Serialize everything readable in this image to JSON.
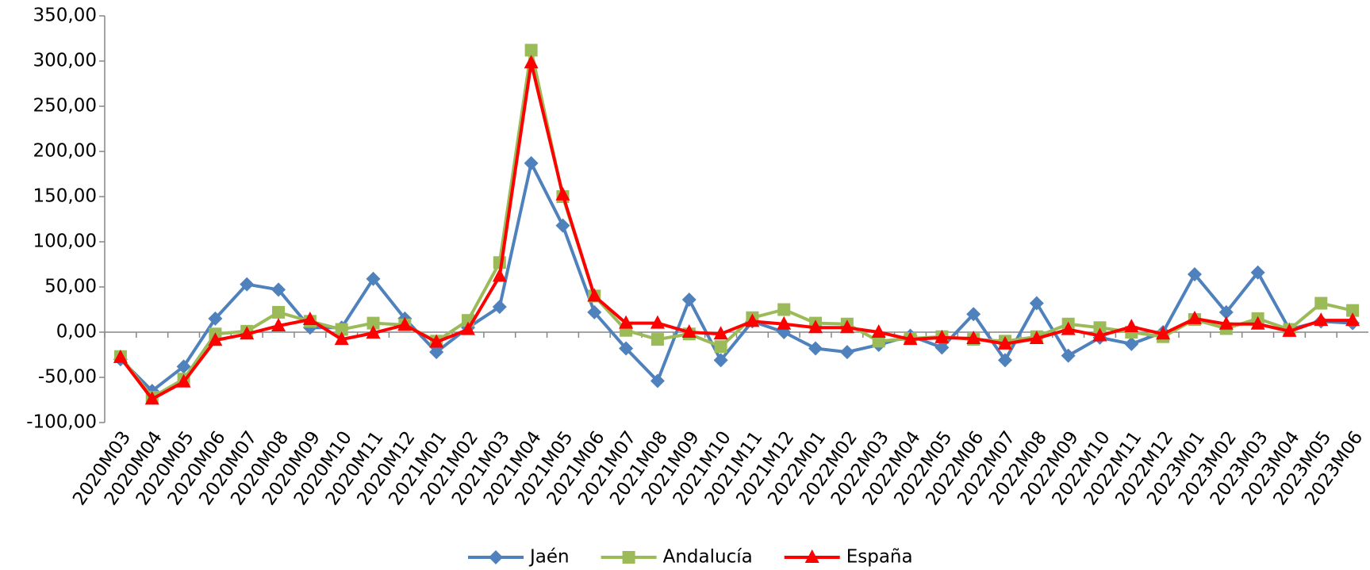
{
  "chart_data": {
    "type": "line",
    "categories": [
      "2020M03",
      "2020M04",
      "2020M05",
      "2020M06",
      "2020M07",
      "2020M08",
      "2020M09",
      "2020M10",
      "2020M11",
      "2020M12",
      "2021M01",
      "2021M02",
      "2021M03",
      "2021M04",
      "2021M05",
      "2021M06",
      "2021M07",
      "2021M08",
      "2021M09",
      "2021M10",
      "2021M11",
      "2021M12",
      "2022M01",
      "2022M02",
      "2022M03",
      "2022M04",
      "2022M05",
      "2022M06",
      "2022M07",
      "2022M08",
      "2022M09",
      "2022M10",
      "2022M11",
      "2022M12",
      "2023M01",
      "2023M02",
      "2023M03",
      "2023M04",
      "2023M05",
      "2023M06"
    ],
    "series": [
      {
        "name": "Jaén",
        "color": "#4f81bd",
        "marker": "diamond",
        "values": [
          -30,
          -65,
          -38,
          15,
          53,
          47,
          5,
          5,
          59,
          15,
          -22,
          5,
          28,
          187,
          118,
          22,
          -18,
          -54,
          36,
          -31,
          12,
          0,
          -18,
          -22,
          -14,
          -4,
          -17,
          20,
          -31,
          32,
          -26,
          -6,
          -13,
          0,
          64,
          22,
          66,
          3,
          12,
          10
        ]
      },
      {
        "name": "Andalucía",
        "color": "#9bbb59",
        "marker": "square",
        "values": [
          -27,
          -72,
          -52,
          -2,
          1,
          22,
          12,
          3,
          10,
          8,
          -10,
          13,
          77,
          312,
          150,
          40,
          2,
          -8,
          -2,
          -16,
          16,
          25,
          10,
          9,
          -10,
          -7,
          -5,
          -8,
          -10,
          -5,
          9,
          5,
          0,
          -5,
          14,
          4,
          15,
          3,
          32,
          24
        ]
      },
      {
        "name": "España",
        "color": "#ff0000",
        "marker": "triangle",
        "values": [
          -28,
          -74,
          -55,
          -9,
          -2,
          7,
          14,
          -8,
          -1,
          8,
          -11,
          3,
          62,
          298,
          152,
          40,
          10,
          10,
          0,
          -2,
          12,
          9,
          5,
          5,
          0,
          -8,
          -6,
          -7,
          -13,
          -7,
          3,
          -4,
          6,
          -2,
          15,
          9,
          9,
          1,
          13,
          13
        ]
      }
    ],
    "ylim": [
      -100,
      350
    ],
    "yticks": [
      {
        "value": -100,
        "label": "-100,00"
      },
      {
        "value": -50,
        "label": "-50,00"
      },
      {
        "value": 0,
        "label": "0,00"
      },
      {
        "value": 50,
        "label": "50,00"
      },
      {
        "value": 100,
        "label": "100,00"
      },
      {
        "value": 150,
        "label": "150,00"
      },
      {
        "value": 200,
        "label": "200,00"
      },
      {
        "value": 250,
        "label": "250,00"
      },
      {
        "value": 300,
        "label": "300,00"
      },
      {
        "value": 350,
        "label": "350,00"
      }
    ],
    "legend": "bottom"
  }
}
